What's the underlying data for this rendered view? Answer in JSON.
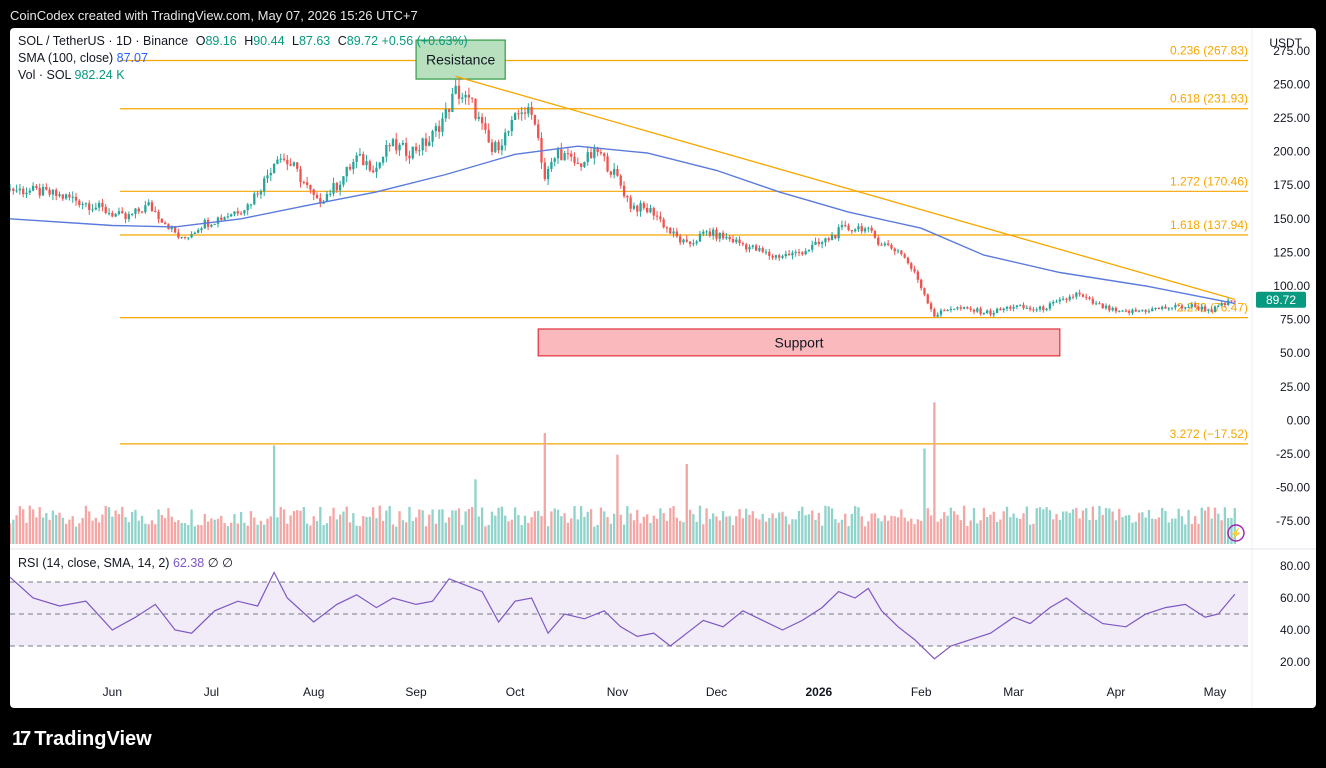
{
  "header": {
    "caption": "CoinCodex created with TradingView.com, May 07, 2026 15:26 UTC+7"
  },
  "footer": {
    "brand": "TradingView",
    "logo_mark": "17"
  },
  "legend": {
    "symbol": "SOL / TetherUS · 1D · Binance",
    "ohlc": [
      {
        "k": "O",
        "v": "89.16"
      },
      {
        "k": "H",
        "v": "90.44"
      },
      {
        "k": "L",
        "v": "87.63"
      },
      {
        "k": "C",
        "v": "89.72"
      }
    ],
    "change": "+0.56 (+0.63%)",
    "sma_label": "SMA (100, close)",
    "sma_value": "87.07",
    "vol_label": "Vol · SOL",
    "vol_value": "982.24 K",
    "rsi_label": "RSI (14, close, SMA, 14, 2)",
    "rsi_value": "62.38",
    "rsi_extra": "∅ ∅"
  },
  "currency": "USDT",
  "colors": {
    "up": "#26a69a",
    "down": "#ef5350",
    "sma": "#5b7bdc",
    "fib": "#f7a600",
    "rsi": "#7e57c2",
    "resistance_fill": "#b8e0bf",
    "resistance_stroke": "#2e9a45",
    "support_fill": "#f9b9bd",
    "support_stroke": "#e0323c",
    "price_badge": "#089981"
  },
  "chart_data": {
    "type": "candlestick",
    "title": "SOL / TetherUS · 1D · Binance",
    "ylabel": "USDT",
    "y_ticks": [
      275.0,
      250.0,
      225.0,
      200.0,
      175.0,
      150.0,
      125.0,
      100.0,
      75.0,
      50.0,
      25.0,
      0.0,
      -25.0,
      -50.0,
      -75.0
    ],
    "ylim": [
      -95,
      292
    ],
    "x_labels": [
      "Jun",
      "Jul",
      "Aug",
      "Sep",
      "Oct",
      "Nov",
      "Dec",
      "2026",
      "Feb",
      "Mar",
      "Apr",
      "May"
    ],
    "last_price": 89.72,
    "fib_levels": [
      {
        "label": "0.236 (267.83)",
        "value": 267.83
      },
      {
        "label": "0.618 (231.93)",
        "value": 231.93
      },
      {
        "label": "1.272 (170.46)",
        "value": 170.46
      },
      {
        "label": "1.618 (137.94)",
        "value": 137.94
      },
      {
        "label": "2.272 (76.47)",
        "value": 76.47
      },
      {
        "label": "3.272 (−17.52)",
        "value": -17.52
      }
    ],
    "trendline": {
      "from": {
        "date": "2025-09-13",
        "price": 256
      },
      "to": {
        "date": "2026-05-07",
        "price": 90
      }
    },
    "zones": [
      {
        "label": "Resistance",
        "from": "2025-09-01",
        "to": "2025-09-28",
        "high": 283,
        "low": 254
      },
      {
        "label": "Support",
        "from": "2025-10-08",
        "to": "2026-03-15",
        "high": 68,
        "low": 48
      }
    ],
    "price_series": [
      [
        "2025-05-01",
        172
      ],
      [
        "2025-05-10",
        170
      ],
      [
        "2025-05-20",
        165
      ],
      [
        "2025-05-28",
        158
      ],
      [
        "2025-06-05",
        150
      ],
      [
        "2025-06-12",
        160
      ],
      [
        "2025-06-18",
        145
      ],
      [
        "2025-06-22",
        134
      ],
      [
        "2025-06-28",
        146
      ],
      [
        "2025-07-05",
        152
      ],
      [
        "2025-07-12",
        160
      ],
      [
        "2025-07-17",
        178
      ],
      [
        "2025-07-21",
        198
      ],
      [
        "2025-07-26",
        188
      ],
      [
        "2025-08-02",
        162
      ],
      [
        "2025-08-08",
        175
      ],
      [
        "2025-08-14",
        195
      ],
      [
        "2025-08-20",
        188
      ],
      [
        "2025-08-24",
        205
      ],
      [
        "2025-08-30",
        200
      ],
      [
        "2025-09-05",
        208
      ],
      [
        "2025-09-10",
        228
      ],
      [
        "2025-09-13",
        245
      ],
      [
        "2025-09-18",
        235
      ],
      [
        "2025-09-24",
        200
      ],
      [
        "2025-09-29",
        215
      ],
      [
        "2025-10-03",
        232
      ],
      [
        "2025-10-07",
        225
      ],
      [
        "2025-10-10",
        180
      ],
      [
        "2025-10-14",
        200
      ],
      [
        "2025-10-20",
        190
      ],
      [
        "2025-10-26",
        200
      ],
      [
        "2025-11-01",
        180
      ],
      [
        "2025-11-05",
        160
      ],
      [
        "2025-11-12",
        155
      ],
      [
        "2025-11-17",
        140
      ],
      [
        "2025-11-22",
        130
      ],
      [
        "2025-11-28",
        140
      ],
      [
        "2025-12-05",
        135
      ],
      [
        "2025-12-12",
        128
      ],
      [
        "2025-12-18",
        122
      ],
      [
        "2025-12-25",
        124
      ],
      [
        "2026-01-02",
        132
      ],
      [
        "2026-01-08",
        142
      ],
      [
        "2026-01-14",
        144
      ],
      [
        "2026-01-20",
        132
      ],
      [
        "2026-01-26",
        125
      ],
      [
        "2026-01-31",
        105
      ],
      [
        "2026-02-05",
        78
      ],
      [
        "2026-02-10",
        84
      ],
      [
        "2026-02-16",
        82
      ],
      [
        "2026-02-22",
        80
      ],
      [
        "2026-03-01",
        85
      ],
      [
        "2026-03-08",
        82
      ],
      [
        "2026-03-15",
        88
      ],
      [
        "2026-03-20",
        94
      ],
      [
        "2026-03-26",
        86
      ],
      [
        "2026-04-02",
        80
      ],
      [
        "2026-04-10",
        82
      ],
      [
        "2026-04-17",
        84
      ],
      [
        "2026-04-24",
        85
      ],
      [
        "2026-04-30",
        82
      ],
      [
        "2026-05-07",
        89.72
      ]
    ],
    "sma_series": [
      [
        "2025-05-01",
        150
      ],
      [
        "2025-06-01",
        145
      ],
      [
        "2025-06-20",
        144
      ],
      [
        "2025-07-10",
        150
      ],
      [
        "2025-07-30",
        160
      ],
      [
        "2025-08-20",
        170
      ],
      [
        "2025-09-10",
        183
      ],
      [
        "2025-10-01",
        198
      ],
      [
        "2025-10-20",
        204
      ],
      [
        "2025-11-10",
        199
      ],
      [
        "2025-12-01",
        186
      ],
      [
        "2025-12-20",
        170
      ],
      [
        "2026-01-10",
        155
      ],
      [
        "2026-02-01",
        143
      ],
      [
        "2026-02-20",
        123
      ],
      [
        "2026-03-15",
        110
      ],
      [
        "2026-04-10",
        100
      ],
      [
        "2026-05-07",
        87.07
      ]
    ],
    "volume_spikes": [
      [
        "2025-07-20",
        3.2
      ],
      [
        "2025-09-19",
        2.1
      ],
      [
        "2025-10-10",
        3.6
      ],
      [
        "2025-11-01",
        2.9
      ],
      [
        "2025-11-22",
        2.6
      ],
      [
        "2026-02-02",
        3.1
      ],
      [
        "2026-02-05",
        4.6
      ]
    ],
    "rsi": {
      "ylim": [
        10,
        90
      ],
      "y_ticks": [
        80.0,
        60.0,
        40.0,
        20.0
      ],
      "bands": [
        70,
        50,
        30
      ],
      "series": [
        [
          "2025-05-01",
          73
        ],
        [
          "2025-05-08",
          60
        ],
        [
          "2025-05-16",
          55
        ],
        [
          "2025-05-24",
          58
        ],
        [
          "2025-06-01",
          40
        ],
        [
          "2025-06-08",
          48
        ],
        [
          "2025-06-14",
          56
        ],
        [
          "2025-06-20",
          40
        ],
        [
          "2025-06-25",
          38
        ],
        [
          "2025-07-02",
          52
        ],
        [
          "2025-07-09",
          58
        ],
        [
          "2025-07-15",
          55
        ],
        [
          "2025-07-20",
          76
        ],
        [
          "2025-07-24",
          60
        ],
        [
          "2025-08-01",
          45
        ],
        [
          "2025-08-08",
          56
        ],
        [
          "2025-08-14",
          62
        ],
        [
          "2025-08-20",
          54
        ],
        [
          "2025-08-25",
          60
        ],
        [
          "2025-09-01",
          56
        ],
        [
          "2025-09-06",
          58
        ],
        [
          "2025-09-11",
          72
        ],
        [
          "2025-09-16",
          68
        ],
        [
          "2025-09-21",
          64
        ],
        [
          "2025-09-26",
          45
        ],
        [
          "2025-10-01",
          58
        ],
        [
          "2025-10-06",
          60
        ],
        [
          "2025-10-11",
          38
        ],
        [
          "2025-10-16",
          50
        ],
        [
          "2025-10-22",
          47
        ],
        [
          "2025-10-28",
          52
        ],
        [
          "2025-11-02",
          42
        ],
        [
          "2025-11-07",
          36
        ],
        [
          "2025-11-12",
          38
        ],
        [
          "2025-11-17",
          30
        ],
        [
          "2025-11-22",
          38
        ],
        [
          "2025-11-27",
          46
        ],
        [
          "2025-12-03",
          42
        ],
        [
          "2025-12-09",
          52
        ],
        [
          "2025-12-15",
          46
        ],
        [
          "2025-12-21",
          40
        ],
        [
          "2025-12-27",
          46
        ],
        [
          "2026-01-02",
          54
        ],
        [
          "2026-01-07",
          64
        ],
        [
          "2026-01-12",
          60
        ],
        [
          "2026-01-16",
          66
        ],
        [
          "2026-01-20",
          52
        ],
        [
          "2026-01-25",
          42
        ],
        [
          "2026-01-30",
          34
        ],
        [
          "2026-02-05",
          22
        ],
        [
          "2026-02-10",
          30
        ],
        [
          "2026-02-16",
          34
        ],
        [
          "2026-02-22",
          38
        ],
        [
          "2026-03-01",
          48
        ],
        [
          "2026-03-06",
          44
        ],
        [
          "2026-03-12",
          54
        ],
        [
          "2026-03-17",
          60
        ],
        [
          "2026-03-22",
          52
        ],
        [
          "2026-03-28",
          44
        ],
        [
          "2026-04-04",
          42
        ],
        [
          "2026-04-10",
          50
        ],
        [
          "2026-04-16",
          54
        ],
        [
          "2026-04-22",
          56
        ],
        [
          "2026-04-28",
          48
        ],
        [
          "2026-05-02",
          50
        ],
        [
          "2026-05-07",
          62.38
        ]
      ]
    }
  }
}
